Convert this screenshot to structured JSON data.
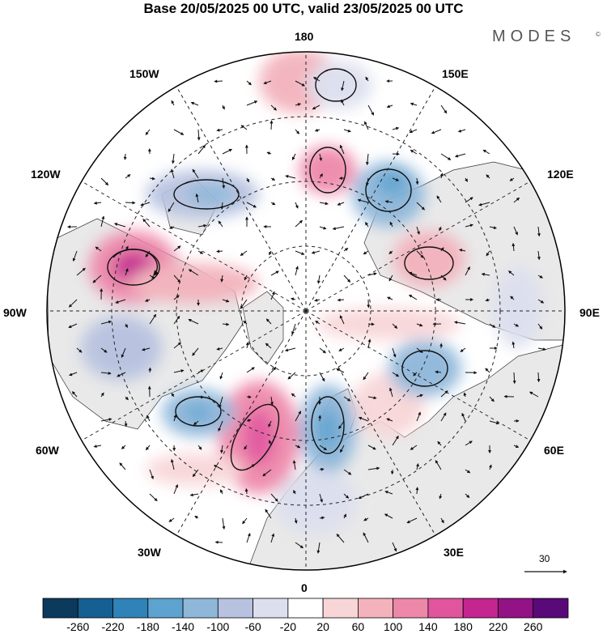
{
  "title": "Base 20/05/2025 00 UTC, valid 23/05/2025 00 UTC",
  "brand": {
    "name": "MODES",
    "mark": "©"
  },
  "longitude_labels": {
    "lon_180": "180",
    "lon_150E": "150E",
    "lon_120E": "120E",
    "lon_90E": "90E",
    "lon_60E": "60E",
    "lon_30E": "30E",
    "lon_0": "0",
    "lon_30W": "30W",
    "lon_60W": "60W",
    "lon_90W": "90W",
    "lon_120W": "120W",
    "lon_150W": "150W"
  },
  "reference_vector": {
    "label": "30"
  },
  "colorbar": {
    "ticks": [
      "-260",
      "-220",
      "-180",
      "-140",
      "-100",
      "-60",
      "-20",
      "20",
      "60",
      "100",
      "140",
      "180",
      "220",
      "260"
    ],
    "colors": [
      "#0c3a5c",
      "#165f92",
      "#2f83b8",
      "#5ea3cf",
      "#8fb7da",
      "#b7c2e0",
      "#dcdfee",
      "#ffffff",
      "#f8d6d8",
      "#f3b2bc",
      "#ee88aa",
      "#e1559e",
      "#c4258e",
      "#931285",
      "#5a0a78"
    ]
  },
  "colors": {
    "land": "#e9e9e9",
    "ocean": "#ffffff",
    "coast": "#333333",
    "grid": "#222222"
  }
}
